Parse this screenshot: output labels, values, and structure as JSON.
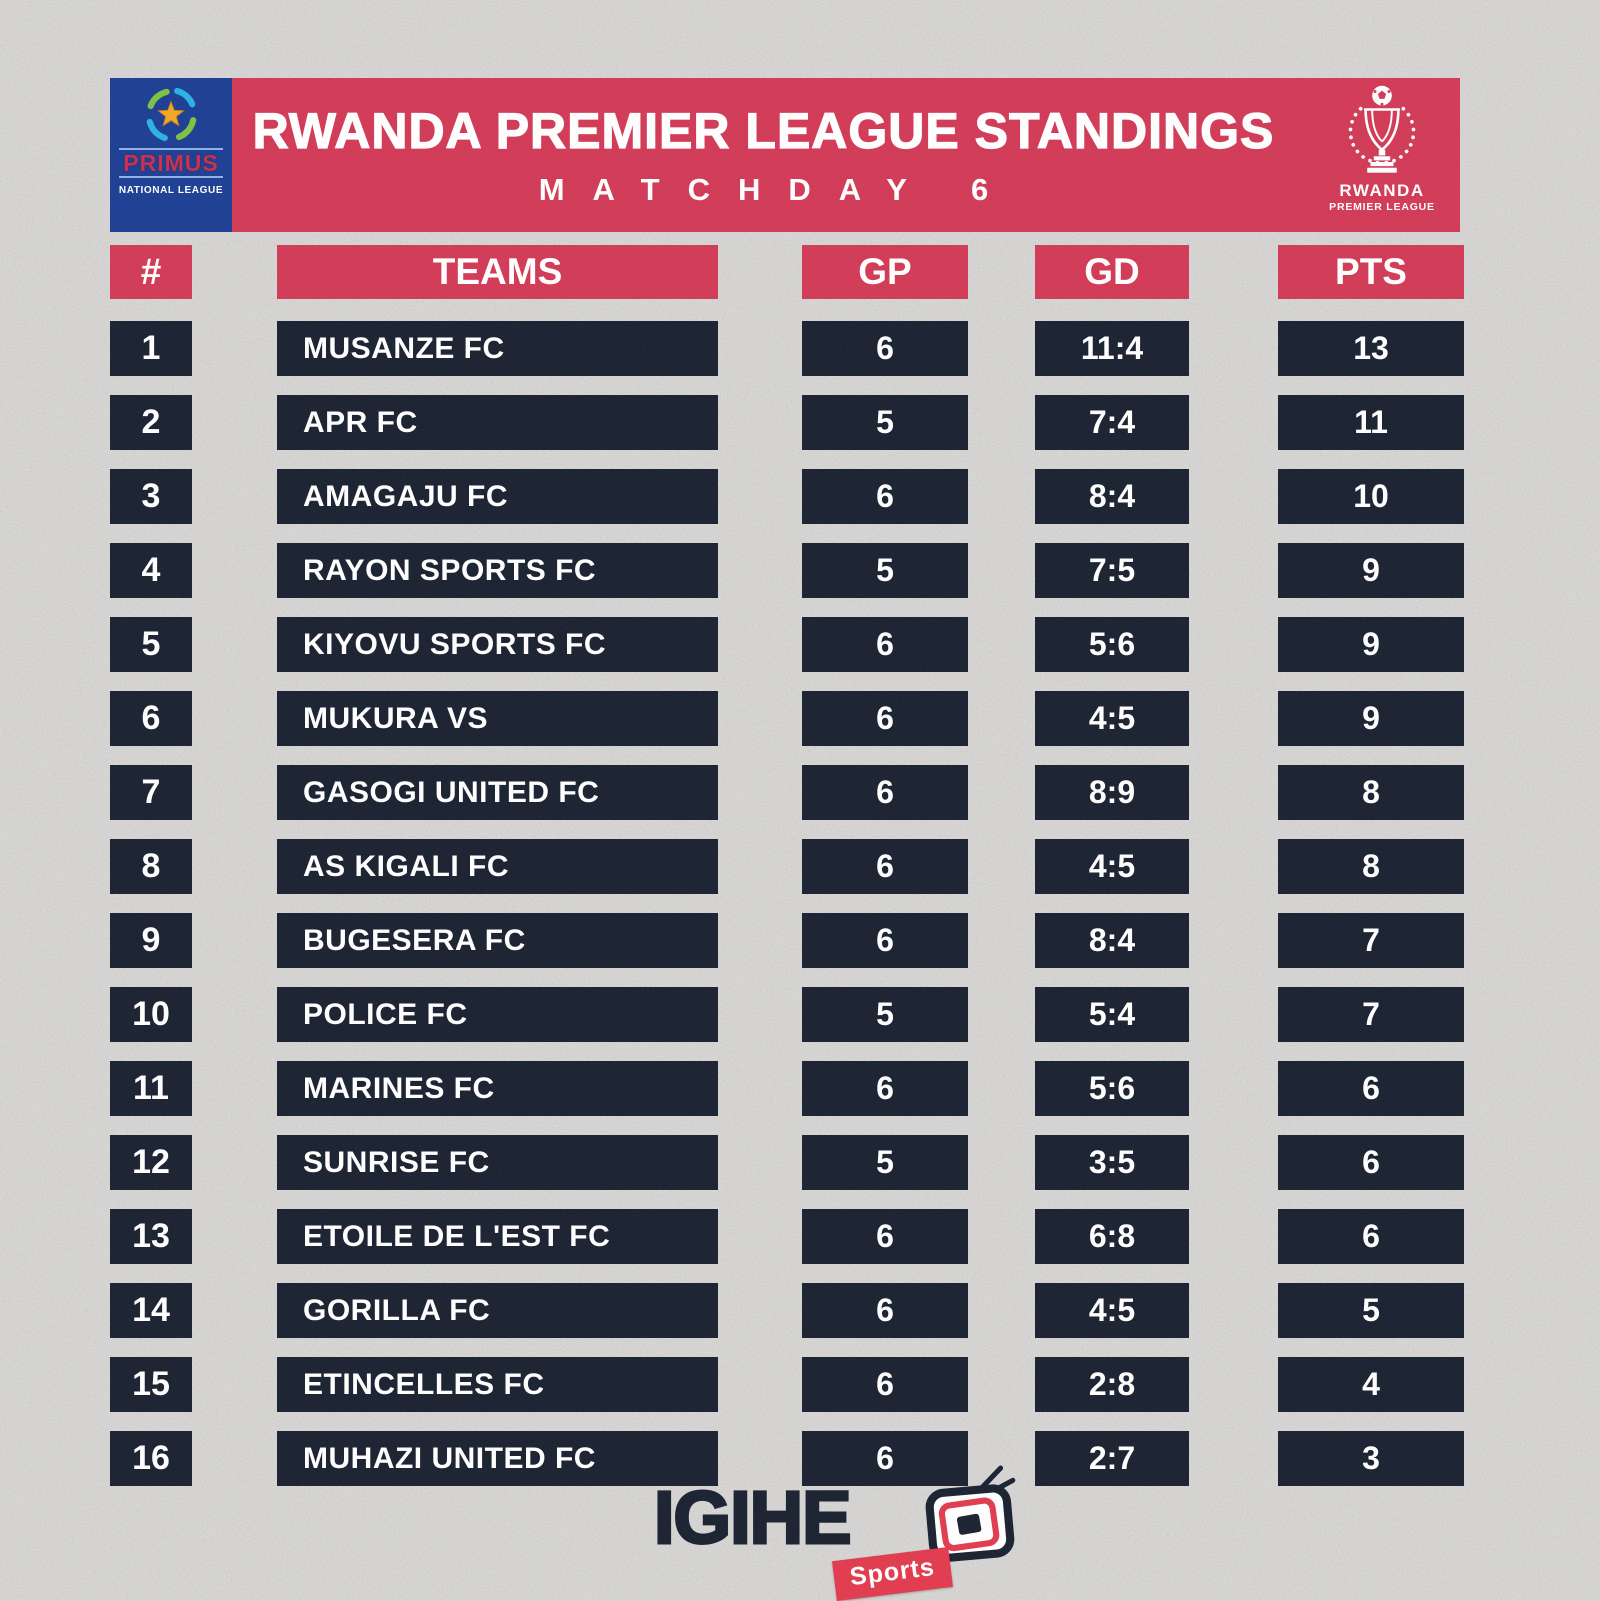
{
  "colors": {
    "accent_red": "#d23a56",
    "navy": "#1a2130",
    "primus_blue": "#1d3e94",
    "background": "#d8d7d5",
    "sports_red": "#e23b4e",
    "star_gold": "#f5a623",
    "swoosh_green": "#7dc242",
    "swoosh_cyan": "#2bb1e8"
  },
  "header": {
    "title": "RWANDA PREMIER LEAGUE STANDINGS",
    "subtitle": "MATCHDAY 6",
    "left_logo": {
      "brand": "PRIMUS",
      "sub": "NATIONAL LEAGUE"
    },
    "right_logo": {
      "line1": "RWANDA",
      "line2": "PREMIER LEAGUE"
    }
  },
  "table": {
    "columns": [
      "#",
      "TEAMS",
      "GP",
      "GD",
      "PTS"
    ],
    "rows": [
      {
        "rank": "1",
        "team": "MUSANZE FC",
        "gp": "6",
        "gd": "11:4",
        "pts": "13"
      },
      {
        "rank": "2",
        "team": "APR FC",
        "gp": "5",
        "gd": "7:4",
        "pts": "11"
      },
      {
        "rank": "3",
        "team": "AMAGAJU FC",
        "gp": "6",
        "gd": "8:4",
        "pts": "10"
      },
      {
        "rank": "4",
        "team": "RAYON SPORTS FC",
        "gp": "5",
        "gd": "7:5",
        "pts": "9"
      },
      {
        "rank": "5",
        "team": "KIYOVU SPORTS FC",
        "gp": "6",
        "gd": "5:6",
        "pts": "9"
      },
      {
        "rank": "6",
        "team": "MUKURA VS",
        "gp": "6",
        "gd": "4:5",
        "pts": "9"
      },
      {
        "rank": "7",
        "team": "GASOGI UNITED FC",
        "gp": "6",
        "gd": "8:9",
        "pts": "8"
      },
      {
        "rank": "8",
        "team": "AS KIGALI FC",
        "gp": "6",
        "gd": "4:5",
        "pts": "8"
      },
      {
        "rank": "9",
        "team": "BUGESERA FC",
        "gp": "6",
        "gd": "8:4",
        "pts": "7"
      },
      {
        "rank": "10",
        "team": "POLICE FC",
        "gp": "5",
        "gd": "5:4",
        "pts": "7"
      },
      {
        "rank": "11",
        "team": "MARINES FC",
        "gp": "6",
        "gd": "5:6",
        "pts": "6"
      },
      {
        "rank": "12",
        "team": "SUNRISE FC",
        "gp": "5",
        "gd": "3:5",
        "pts": "6"
      },
      {
        "rank": "13",
        "team": "ETOILE DE L'EST FC",
        "gp": "6",
        "gd": "6:8",
        "pts": "6"
      },
      {
        "rank": "14",
        "team": "GORILLA FC",
        "gp": "6",
        "gd": "4:5",
        "pts": "5"
      },
      {
        "rank": "15",
        "team": "ETINCELLES FC",
        "gp": "6",
        "gd": "2:8",
        "pts": "4"
      },
      {
        "rank": "16",
        "team": "MUHAZI UNITED FC",
        "gp": "6",
        "gd": "2:7",
        "pts": "3"
      }
    ]
  },
  "footer": {
    "brand": "IGIHE",
    "badge": "Sports"
  },
  "chart_data": {
    "type": "table",
    "title": "RWANDA PREMIER LEAGUE STANDINGS",
    "subtitle": "MATCHDAY 6",
    "columns": [
      "#",
      "TEAMS",
      "GP",
      "GD",
      "PTS"
    ],
    "rows": [
      [
        1,
        "MUSANZE FC",
        6,
        "11:4",
        13
      ],
      [
        2,
        "APR FC",
        5,
        "7:4",
        11
      ],
      [
        3,
        "AMAGAJU FC",
        6,
        "8:4",
        10
      ],
      [
        4,
        "RAYON SPORTS FC",
        5,
        "7:5",
        9
      ],
      [
        5,
        "KIYOVU SPORTS FC",
        6,
        "5:6",
        9
      ],
      [
        6,
        "MUKURA VS",
        6,
        "4:5",
        9
      ],
      [
        7,
        "GASOGI UNITED FC",
        6,
        "8:9",
        8
      ],
      [
        8,
        "AS KIGALI FC",
        6,
        "4:5",
        8
      ],
      [
        9,
        "BUGESERA FC",
        6,
        "8:4",
        7
      ],
      [
        10,
        "POLICE FC",
        5,
        "5:4",
        7
      ],
      [
        11,
        "MARINES FC",
        6,
        "5:6",
        6
      ],
      [
        12,
        "SUNRISE FC",
        5,
        "3:5",
        6
      ],
      [
        13,
        "ETOILE DE L'EST FC",
        6,
        "6:8",
        6
      ],
      [
        14,
        "GORILLA FC",
        6,
        "4:5",
        5
      ],
      [
        15,
        "ETINCELLES FC",
        6,
        "2:8",
        4
      ],
      [
        16,
        "MUHAZI UNITED FC",
        6,
        "2:7",
        3
      ]
    ]
  }
}
